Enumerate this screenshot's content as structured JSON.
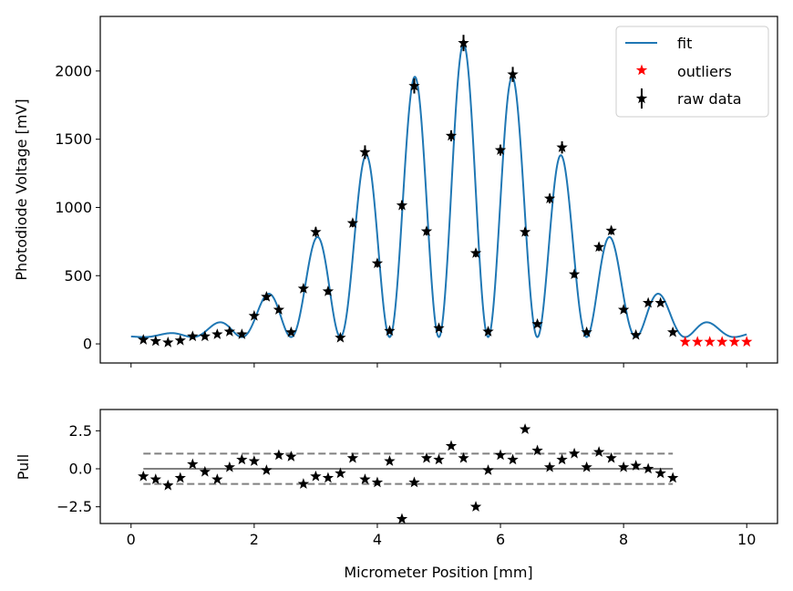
{
  "chart_data": [
    {
      "type": "line",
      "title": "",
      "xlabel": "",
      "ylabel": "Photodiode Voltage [mV]",
      "xlim": [
        -0.5,
        10.5
      ],
      "ylim": [
        -140,
        2400
      ],
      "xticks": [
        0,
        2,
        4,
        6,
        8,
        10
      ],
      "yticks": [
        0,
        500,
        1000,
        1500,
        2000
      ],
      "xtick_labels_shown": false,
      "grid": false,
      "legend": {
        "placement": "top-right",
        "entries": [
          {
            "label": "fit",
            "marker": "line",
            "color": "#1f77b4"
          },
          {
            "label": "outliers",
            "marker": "star",
            "color": "#ff0000"
          },
          {
            "label": "raw data",
            "marker": "star-errorbar",
            "color": "#000000"
          }
        ]
      },
      "series": [
        {
          "name": "raw data",
          "color": "#000000",
          "marker": "star",
          "errorbars": true,
          "x": [
            0.2,
            0.4,
            0.6,
            0.8,
            1.0,
            1.2,
            1.4,
            1.6,
            1.8,
            2.0,
            2.2,
            2.4,
            2.6,
            2.8,
            3.0,
            3.2,
            3.4,
            3.6,
            3.8,
            4.0,
            4.2,
            4.4,
            4.6,
            4.8,
            5.0,
            5.2,
            5.4,
            5.6,
            5.8,
            6.0,
            6.2,
            6.4,
            6.6,
            6.8,
            7.0,
            7.2,
            7.4,
            7.6,
            7.8,
            8.0,
            8.2,
            8.4,
            8.6,
            8.8
          ],
          "y": [
            30,
            20,
            10,
            25,
            55,
            55,
            70,
            90,
            70,
            205,
            345,
            250,
            85,
            405,
            820,
            385,
            45,
            885,
            1405,
            590,
            95,
            1015,
            1890,
            825,
            115,
            1525,
            2205,
            665,
            90,
            1420,
            1975,
            820,
            145,
            1065,
            1440,
            510,
            85,
            710,
            830,
            250,
            65,
            300,
            300,
            85
          ],
          "yerr": [
            15,
            15,
            15,
            15,
            20,
            20,
            20,
            20,
            20,
            20,
            25,
            20,
            20,
            25,
            35,
            25,
            15,
            30,
            50,
            30,
            20,
            35,
            55,
            30,
            20,
            40,
            60,
            30,
            20,
            40,
            55,
            30,
            20,
            35,
            45,
            25,
            20,
            30,
            30,
            20,
            15,
            20,
            20,
            20
          ]
        },
        {
          "name": "outliers",
          "color": "#ff0000",
          "marker": "star",
          "x": [
            9.0,
            9.2,
            9.4,
            9.6,
            9.8,
            10.0
          ],
          "y": [
            15,
            15,
            15,
            15,
            15,
            15
          ]
        },
        {
          "name": "fit",
          "color": "#1f77b4",
          "type": "line",
          "model": "50 + 2150*exp(-((x-5.4)/2.3)^2)*cos^2(pi*(x-5.4)/0.8) ",
          "x_range": [
            0,
            10
          ]
        }
      ]
    },
    {
      "type": "scatter",
      "title": "",
      "xlabel": "Micrometer Position [mm]",
      "ylabel": "Pull",
      "xlim": [
        -0.5,
        10.5
      ],
      "ylim": [
        -3.6,
        3.9
      ],
      "xticks": [
        0,
        2,
        4,
        6,
        8,
        10
      ],
      "yticks": [
        2.5,
        0.0,
        -2.5
      ],
      "ytick_labels": [
        "2.5",
        "0.0",
        "−2.5"
      ],
      "grid": false,
      "reference_lines": [
        {
          "y": 0,
          "style": "solid",
          "color": "#808080",
          "x_range": [
            0.2,
            8.8
          ]
        },
        {
          "y": 1,
          "style": "dashed",
          "color": "#808080",
          "x_range": [
            0.2,
            8.8
          ]
        },
        {
          "y": -1,
          "style": "dashed",
          "color": "#808080",
          "x_range": [
            0.2,
            8.8
          ]
        }
      ],
      "series": [
        {
          "name": "pull",
          "color": "#000000",
          "marker": "star",
          "x": [
            0.2,
            0.4,
            0.6,
            0.8,
            1.0,
            1.2,
            1.4,
            1.6,
            1.8,
            2.0,
            2.2,
            2.4,
            2.6,
            2.8,
            3.0,
            3.2,
            3.4,
            3.6,
            3.8,
            4.0,
            4.2,
            4.4,
            4.6,
            4.8,
            5.0,
            5.2,
            5.4,
            5.6,
            5.8,
            6.0,
            6.2,
            6.4,
            6.6,
            6.8,
            7.0,
            7.2,
            7.4,
            7.6,
            7.8,
            8.0,
            8.2,
            8.4,
            8.6,
            8.8
          ],
          "y": [
            -0.5,
            -0.7,
            -1.1,
            -0.6,
            0.3,
            -0.2,
            -0.7,
            0.1,
            0.6,
            0.5,
            -0.1,
            0.9,
            0.8,
            -1.0,
            -0.5,
            -0.6,
            -0.3,
            0.7,
            -0.7,
            -0.9,
            0.5,
            -3.3,
            -0.9,
            0.7,
            0.6,
            1.5,
            0.7,
            -2.5,
            -0.1,
            0.9,
            0.6,
            2.6,
            1.2,
            0.1,
            0.6,
            1.0,
            0.1,
            1.1,
            0.7,
            0.1,
            0.2,
            0.0,
            -0.3,
            -0.6
          ]
        }
      ]
    }
  ]
}
